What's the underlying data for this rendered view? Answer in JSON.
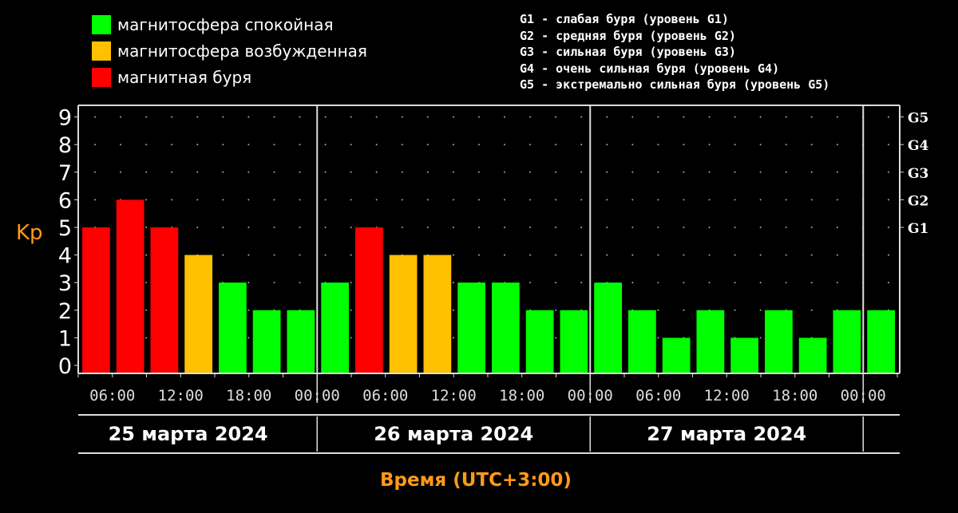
{
  "legend": [
    {
      "label": "магнитосфера спокойная",
      "color": "#00ff00"
    },
    {
      "label": "магнитосфера возбужденная",
      "color": "#ffc000"
    },
    {
      "label": "магнитная буря",
      "color": "#ff0000"
    }
  ],
  "g_legend": [
    "G1 - слабая буря (уровень G1)",
    "G2 - средняя буря (уровень G2)",
    "G3 - сильная буря (уровень G3)",
    "G4 - очень сильная буря (уровень G4)",
    "G5 - экстремально сильная буря (уровень G5)"
  ],
  "chart_data": {
    "type": "bar",
    "ylabel": "Kp",
    "xlabel": "Время (UTC+3:00)",
    "ylim": [
      0,
      9
    ],
    "yticks": [
      "0",
      "1",
      "2",
      "3",
      "4",
      "5",
      "6",
      "7",
      "8",
      "9"
    ],
    "right_ticks": [
      {
        "value": 5,
        "label": "G1"
      },
      {
        "value": 6,
        "label": "G2"
      },
      {
        "value": 7,
        "label": "G3"
      },
      {
        "value": 8,
        "label": "G4"
      },
      {
        "value": 9,
        "label": "G5"
      }
    ],
    "xticks": [
      "06:00",
      "12:00",
      "18:00",
      "00:00",
      "06:00",
      "12:00",
      "18:00",
      "00:00",
      "06:00",
      "12:00",
      "18:00",
      "00:00"
    ],
    "days": [
      "25 марта 2024",
      "26 марта 2024",
      "27 марта 2024"
    ],
    "interval_hours": 3,
    "start": "25 марта 2024 03:00",
    "values": [
      5,
      6,
      5,
      4,
      3,
      2,
      2,
      3,
      5,
      4,
      4,
      3,
      3,
      2,
      2,
      3,
      2,
      1,
      2,
      1,
      2,
      1,
      2,
      2
    ],
    "colors": {
      "quiet": "#00ff00",
      "active": "#ffc000",
      "storm": "#ff0000"
    },
    "grid": true
  }
}
